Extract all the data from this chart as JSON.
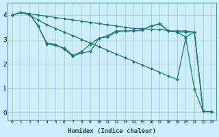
{
  "xlabel": "Humidex (Indice chaleur)",
  "background_color": "#cceeff",
  "grid_color": "#aaccbb",
  "line_color": "#1a7a6e",
  "xlim": [
    -0.5,
    23.5
  ],
  "ylim": [
    -0.3,
    4.5
  ],
  "yticks": [
    0,
    1,
    2,
    3,
    4
  ],
  "xtick_labels": [
    "0",
    "1",
    "2",
    "3",
    "4",
    "5",
    "6",
    "7",
    "8",
    "9",
    "10",
    "11",
    "12",
    "13",
    "14",
    "15",
    "16",
    "17",
    "18",
    "19",
    "20",
    "21",
    "22",
    "23"
  ],
  "series": [
    {
      "x": [
        0,
        1,
        2,
        3,
        4,
        5,
        6,
        7,
        8,
        9,
        10,
        11,
        12,
        13,
        14,
        15,
        16,
        17,
        18,
        19,
        20,
        21,
        22,
        23
      ],
      "y": [
        4.0,
        4.1,
        4.05,
        4.0,
        3.95,
        3.9,
        3.85,
        3.8,
        3.75,
        3.7,
        3.65,
        3.6,
        3.55,
        3.5,
        3.45,
        3.45,
        3.4,
        3.42,
        3.35,
        3.3,
        3.3,
        3.3,
        0.05,
        0.03
      ]
    },
    {
      "x": [
        0,
        1,
        2,
        3,
        4,
        5,
        6,
        7,
        8,
        9,
        10,
        11,
        12,
        13,
        14,
        15,
        16,
        17,
        18,
        19,
        20,
        21,
        22,
        23
      ],
      "y": [
        4.0,
        4.1,
        4.05,
        3.55,
        2.85,
        2.8,
        2.6,
        2.3,
        2.45,
        2.5,
        3.05,
        3.1,
        3.3,
        3.35,
        3.35,
        3.37,
        3.55,
        3.62,
        3.35,
        3.35,
        3.35,
        3.3,
        0.05,
        0.03
      ]
    },
    {
      "x": [
        0,
        1,
        2,
        3,
        4,
        5,
        6,
        7,
        8,
        9,
        10,
        11,
        12,
        13,
        14,
        15,
        16,
        17,
        18,
        19,
        20,
        21,
        22,
        23
      ],
      "y": [
        4.0,
        4.1,
        4.05,
        3.55,
        2.8,
        2.75,
        2.65,
        2.35,
        2.5,
        2.8,
        3.05,
        3.15,
        3.35,
        3.35,
        3.35,
        3.4,
        3.55,
        3.65,
        3.35,
        3.3,
        3.1,
        3.3,
        0.05,
        0.03
      ]
    },
    {
      "x": [
        0,
        1,
        2,
        3,
        4,
        5,
        6,
        7,
        8,
        9,
        10,
        11,
        12,
        13,
        14,
        15,
        16,
        17,
        18,
        19,
        20,
        21,
        22,
        23
      ],
      "y": [
        4.0,
        4.1,
        4.0,
        3.8,
        3.6,
        3.45,
        3.3,
        3.15,
        3.0,
        2.85,
        2.7,
        2.55,
        2.4,
        2.25,
        2.1,
        1.95,
        1.8,
        1.65,
        1.5,
        1.35,
        3.05,
        0.95,
        0.05,
        0.03
      ]
    }
  ]
}
